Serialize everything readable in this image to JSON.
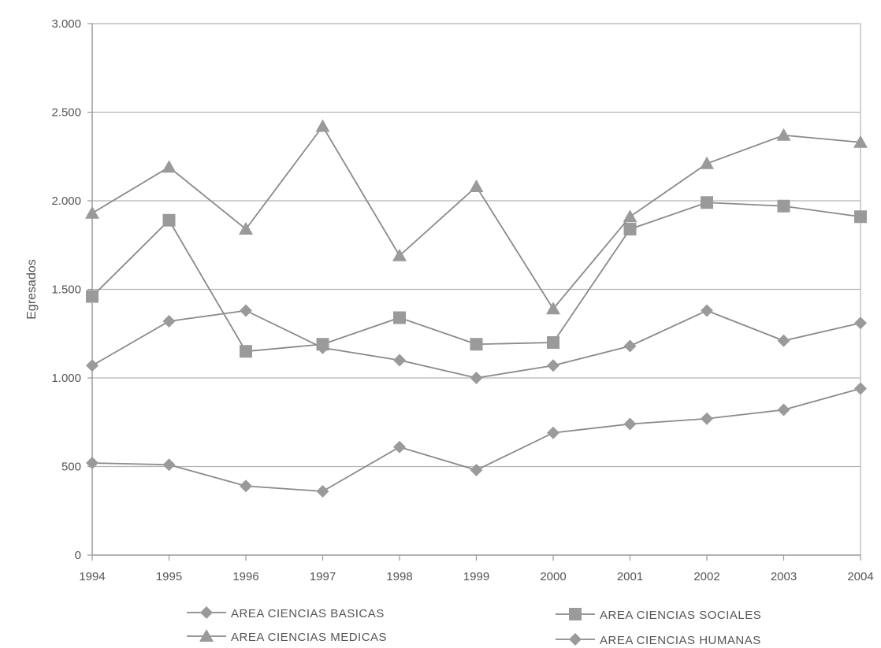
{
  "chart_data": {
    "type": "line",
    "title": "",
    "xlabel": "",
    "ylabel": "Egresados",
    "categories": [
      "1994",
      "1995",
      "1996",
      "1997",
      "1998",
      "1999",
      "2000",
      "2001",
      "2002",
      "2003",
      "2004"
    ],
    "ylim": [
      0,
      3000
    ],
    "yticks": [
      0,
      500,
      1000,
      1500,
      2000,
      2500,
      3000
    ],
    "ytick_labels": [
      "0",
      "500",
      "1.000",
      "1.500",
      "2.000",
      "2.500",
      "3.000"
    ],
    "grid": true,
    "legend_position": "bottom",
    "series": [
      {
        "name": "AREA CIENCIAS BASICAS",
        "marker": "diamond",
        "values": [
          1070,
          1320,
          1380,
          1170,
          1100,
          1000,
          1070,
          1180,
          1380,
          1210,
          1310
        ]
      },
      {
        "name": "AREA CIENCIAS SOCIALES",
        "marker": "square",
        "values": [
          1460,
          1890,
          1150,
          1190,
          1340,
          1190,
          1200,
          1840,
          1990,
          1970,
          1910
        ]
      },
      {
        "name": "AREA CIENCIAS MEDICAS",
        "marker": "triangle",
        "values": [
          1930,
          2190,
          1840,
          2420,
          1690,
          2080,
          1390,
          1910,
          2210,
          2370,
          2330
        ]
      },
      {
        "name": "AREA CIENCIAS HUMANAS",
        "marker": "diamond",
        "values": [
          520,
          510,
          390,
          360,
          610,
          480,
          690,
          740,
          770,
          820,
          940
        ]
      }
    ],
    "colors": {
      "line": "#8a8a8a",
      "marker": "#9a9a9a",
      "grid": "#b5b5b5",
      "axis": "#9a9a9a",
      "text": "#555555"
    }
  }
}
